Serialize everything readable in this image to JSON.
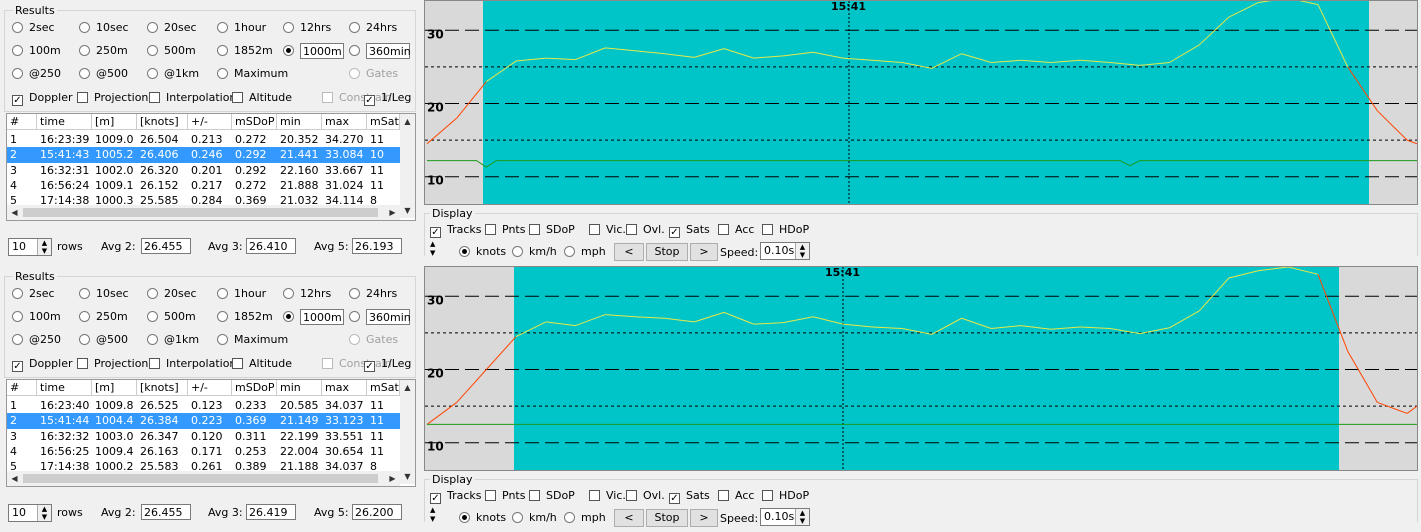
{
  "panels": [
    {
      "results_title": "Results",
      "radio_rows": [
        [
          {
            "label": "2sec",
            "on": false
          },
          {
            "label": "10sec",
            "on": false
          },
          {
            "label": "20sec",
            "on": false
          },
          {
            "label": "1hour",
            "on": false
          },
          {
            "label": "12hrs",
            "on": false
          },
          {
            "label": "24hrs",
            "on": false
          }
        ],
        [
          {
            "label": "100m",
            "on": false
          },
          {
            "label": "250m",
            "on": false
          },
          {
            "label": "500m",
            "on": false
          },
          {
            "label": "1852m",
            "on": false
          },
          {
            "label": "",
            "on": true,
            "box": "1000m"
          },
          {
            "label": "",
            "on": false,
            "box": "360min"
          }
        ],
        [
          {
            "label": "@250",
            "on": false
          },
          {
            "label": "@500",
            "on": false
          },
          {
            "label": "@1km",
            "on": false
          },
          {
            "label": "Maximum",
            "on": false
          },
          null,
          {
            "label": "Gates",
            "on": false,
            "disabled": true
          }
        ]
      ],
      "checks": [
        {
          "label": "Doppler",
          "on": true
        },
        {
          "label": "Projection",
          "on": false
        },
        {
          "label": "Interpolation",
          "on": false
        },
        {
          "label": "Altitude",
          "on": false
        },
        {
          "label": "Constrain",
          "on": false,
          "disabled": true
        },
        {
          "label": "1/Leg",
          "on": true
        }
      ],
      "table": {
        "headers": [
          "#",
          "time",
          "[m]",
          "[knots]",
          "+/-",
          "mSDoP",
          "min",
          "max",
          "mSats"
        ],
        "rows": [
          [
            "1",
            "16:23:39",
            "1009.0",
            "26.504",
            "0.213",
            "0.272",
            "20.352",
            "34.270",
            "11"
          ],
          [
            "2",
            "15:41:43",
            "1005.2",
            "26.406",
            "0.246",
            "0.292",
            "21.441",
            "33.084",
            "10"
          ],
          [
            "3",
            "16:32:31",
            "1002.0",
            "26.320",
            "0.201",
            "0.292",
            "22.160",
            "33.667",
            "11"
          ],
          [
            "4",
            "16:56:24",
            "1009.1",
            "26.152",
            "0.217",
            "0.272",
            "21.888",
            "31.024",
            "11"
          ],
          [
            "5",
            "17:14:38",
            "1000.3",
            "25.585",
            "0.284",
            "0.369",
            "21.032",
            "34.114",
            "8"
          ]
        ],
        "selected": 1
      },
      "rows_value": "10",
      "rows_label": "rows",
      "avg2_label": "Avg 2:",
      "avg2": "26.455",
      "avg3_label": "Avg 3:",
      "avg3": "26.410",
      "avg5_label": "Avg 5:",
      "avg5": "26.193"
    },
    {
      "results_title": "Results",
      "radio_rows": [
        [
          {
            "label": "2sec",
            "on": false
          },
          {
            "label": "10sec",
            "on": false
          },
          {
            "label": "20sec",
            "on": false
          },
          {
            "label": "1hour",
            "on": false
          },
          {
            "label": "12hrs",
            "on": false
          },
          {
            "label": "24hrs",
            "on": false
          }
        ],
        [
          {
            "label": "100m",
            "on": false
          },
          {
            "label": "250m",
            "on": false
          },
          {
            "label": "500m",
            "on": false
          },
          {
            "label": "1852m",
            "on": false
          },
          {
            "label": "",
            "on": true,
            "box": "1000m"
          },
          {
            "label": "",
            "on": false,
            "box": "360min"
          }
        ],
        [
          {
            "label": "@250",
            "on": false
          },
          {
            "label": "@500",
            "on": false
          },
          {
            "label": "@1km",
            "on": false
          },
          {
            "label": "Maximum",
            "on": false
          },
          null,
          {
            "label": "Gates",
            "on": false,
            "disabled": true
          }
        ]
      ],
      "checks": [
        {
          "label": "Doppler",
          "on": true
        },
        {
          "label": "Projection",
          "on": false
        },
        {
          "label": "Interpolation",
          "on": false
        },
        {
          "label": "Altitude",
          "on": false
        },
        {
          "label": "Constrain",
          "on": false,
          "disabled": true
        },
        {
          "label": "1/Leg",
          "on": true
        }
      ],
      "table": {
        "headers": [
          "#",
          "time",
          "[m]",
          "[knots]",
          "+/-",
          "mSDoP",
          "min",
          "max",
          "mSats"
        ],
        "rows": [
          [
            "1",
            "16:23:40",
            "1009.8",
            "26.525",
            "0.123",
            "0.233",
            "20.585",
            "34.037",
            "11"
          ],
          [
            "2",
            "15:41:44",
            "1004.4",
            "26.384",
            "0.223",
            "0.369",
            "21.149",
            "33.123",
            "11"
          ],
          [
            "3",
            "16:32:32",
            "1003.0",
            "26.347",
            "0.120",
            "0.311",
            "22.199",
            "33.551",
            "11"
          ],
          [
            "4",
            "16:56:25",
            "1009.4",
            "26.163",
            "0.171",
            "0.253",
            "22.004",
            "30.654",
            "11"
          ],
          [
            "5",
            "17:14:38",
            "1000.2",
            "25.583",
            "0.261",
            "0.389",
            "21.188",
            "34.037",
            "8"
          ]
        ],
        "selected": 1
      },
      "rows_value": "10",
      "rows_label": "rows",
      "avg2_label": "Avg 2:",
      "avg2": "26.455",
      "avg3_label": "Avg 3:",
      "avg3": "26.419",
      "avg5_label": "Avg 5:",
      "avg5": "26.200"
    }
  ],
  "charts": [
    {
      "time_label": "15:41",
      "ytick_labels": [
        "30",
        "20",
        "10"
      ],
      "colors": {
        "background": "#d9d9d9",
        "highlight": "#00c5c8",
        "speed_line": "#e8e84a",
        "speed_edge": "#ff4500",
        "sats_line": "#1a9a1a"
      }
    },
    {
      "time_label": "15:41",
      "ytick_labels": [
        "30",
        "20",
        "10"
      ],
      "colors": {
        "background": "#d9d9d9",
        "highlight": "#00c5c8",
        "speed_line": "#e8e84a",
        "speed_edge": "#ff4500",
        "sats_line": "#1a9a1a"
      }
    }
  ],
  "chart_data": [
    {
      "type": "line",
      "title": "",
      "ylim": [
        6,
        34
      ],
      "series": [
        {
          "x": [
            0,
            3,
            6,
            9,
            12,
            15,
            18,
            21,
            24,
            27,
            30,
            33,
            36,
            39,
            42,
            45,
            48,
            51,
            54,
            57,
            60,
            63,
            66,
            69,
            72,
            75,
            78,
            81,
            84,
            87,
            90,
            93,
            96,
            99,
            100
          ],
          "values": [
            14.5,
            18,
            23,
            25.8,
            26.2,
            26,
            27.6,
            27.2,
            26.8,
            26.3,
            27.5,
            26.2,
            26.5,
            27,
            26.2,
            25.9,
            25.6,
            24.8,
            26.8,
            25.6,
            25.9,
            25.6,
            25.9,
            25.6,
            25.2,
            25.6,
            28,
            31.8,
            33.8,
            34.4,
            33.5,
            25,
            19,
            15,
            14.5
          ]
        },
        {
          "x": [
            0,
            5,
            6,
            7,
            10,
            70,
            71,
            72,
            100
          ],
          "values": [
            12.2,
            12.2,
            11.3,
            12.2,
            12.2,
            12.2,
            11.5,
            12.2,
            12.2
          ]
        }
      ]
    },
    {
      "type": "line",
      "title": "",
      "ylim": [
        6,
        34
      ],
      "series": [
        {
          "x": [
            0,
            3,
            6,
            9,
            12,
            15,
            18,
            21,
            24,
            27,
            30,
            33,
            36,
            39,
            42,
            45,
            48,
            51,
            54,
            57,
            60,
            63,
            66,
            69,
            72,
            75,
            78,
            81,
            84,
            87,
            90,
            93,
            96,
            99,
            100
          ],
          "values": [
            12.5,
            15.5,
            20,
            24.5,
            26.5,
            26,
            27.5,
            27.2,
            27,
            26.5,
            27.8,
            26.2,
            26.4,
            27.2,
            26.2,
            25.8,
            25.6,
            24.8,
            27,
            25.6,
            26,
            25.5,
            25.8,
            25.6,
            24.9,
            25.7,
            28,
            32.5,
            33.5,
            34,
            33,
            22.5,
            15.5,
            14,
            15
          ]
        },
        {
          "x": [
            0,
            100
          ],
          "values": [
            12.5,
            12.5
          ]
        }
      ]
    }
  ],
  "display": [
    {
      "title": "Display",
      "checks": [
        {
          "label": "Tracks",
          "on": true
        },
        {
          "label": "Pnts",
          "on": false
        },
        {
          "label": "SDoP",
          "on": false
        },
        {
          "label": "Vic.",
          "on": false
        },
        {
          "label": "Ovl.",
          "on": false
        },
        {
          "label": "Sats",
          "on": true
        },
        {
          "label": "Acc",
          "on": false
        },
        {
          "label": "HDoP",
          "on": false
        }
      ],
      "units": [
        {
          "label": "knots",
          "on": true
        },
        {
          "label": "km/h",
          "on": false
        },
        {
          "label": "mph",
          "on": false
        }
      ],
      "prev": "<",
      "stop": "Stop",
      "next": ">",
      "speed_label": "Speed:",
      "speed_value": "0.10s"
    },
    {
      "title": "Display",
      "checks": [
        {
          "label": "Tracks",
          "on": true
        },
        {
          "label": "Pnts",
          "on": false
        },
        {
          "label": "SDoP",
          "on": false
        },
        {
          "label": "Vic.",
          "on": false
        },
        {
          "label": "Ovl.",
          "on": false
        },
        {
          "label": "Sats",
          "on": true
        },
        {
          "label": "Acc",
          "on": false
        },
        {
          "label": "HDoP",
          "on": false
        }
      ],
      "units": [
        {
          "label": "knots",
          "on": true
        },
        {
          "label": "km/h",
          "on": false
        },
        {
          "label": "mph",
          "on": false
        }
      ],
      "prev": "<",
      "stop": "Stop",
      "next": ">",
      "speed_label": "Speed:",
      "speed_value": "0.10s"
    }
  ]
}
